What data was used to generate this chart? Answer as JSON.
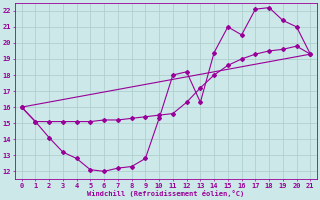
{
  "xlabel": "Windchill (Refroidissement éolien,°C)",
  "background_color": "#cce8e8",
  "grid_color": "#aacccc",
  "line_color": "#990099",
  "marker": "D",
  "markersize": 2,
  "linewidth": 0.8,
  "xlim": [
    -0.5,
    21.5
  ],
  "ylim": [
    11.5,
    22.5
  ],
  "xticks": [
    0,
    1,
    2,
    3,
    4,
    5,
    6,
    7,
    8,
    9,
    10,
    11,
    12,
    13,
    14,
    15,
    16,
    17,
    18,
    19,
    20,
    21
  ],
  "yticks": [
    12,
    13,
    14,
    15,
    16,
    17,
    18,
    19,
    20,
    21,
    22
  ],
  "series1_x": [
    0,
    1,
    2,
    3,
    4,
    5,
    6,
    7,
    8,
    9,
    10,
    11,
    12,
    13,
    14,
    15,
    16,
    17,
    18,
    19,
    20,
    21
  ],
  "series1_y": [
    16,
    15.1,
    14.1,
    13.2,
    12.8,
    12.1,
    12.0,
    12.2,
    12.3,
    12.8,
    15.3,
    18.0,
    18.2,
    16.3,
    19.4,
    21.0,
    20.5,
    22.1,
    22.2,
    21.4,
    21.0,
    19.3
  ],
  "series2_x": [
    0,
    1,
    2,
    3,
    4,
    5,
    6,
    7,
    8,
    9,
    10,
    11,
    12,
    13,
    14,
    15,
    16,
    17,
    18,
    19,
    20,
    21
  ],
  "series2_y": [
    16,
    15.1,
    15.1,
    15.1,
    15.1,
    15.1,
    15.2,
    15.2,
    15.3,
    15.4,
    15.5,
    15.6,
    16.3,
    17.2,
    18.0,
    18.6,
    19.0,
    19.3,
    19.5,
    19.6,
    19.8,
    19.3
  ],
  "series3_x": [
    0,
    21
  ],
  "series3_y": [
    16,
    19.3
  ]
}
